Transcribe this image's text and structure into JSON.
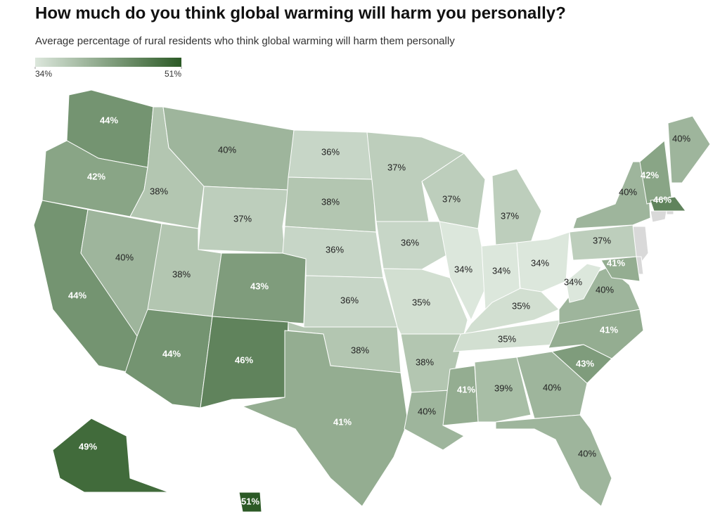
{
  "chart_data": {
    "type": "choropleth",
    "title": "How much do you think global warming will harm you personally?",
    "subtitle": "Average percentage of rural residents who think global warming will harm them personally",
    "colors": [
      "#dce7dc",
      "#2c5a26"
    ],
    "legend_ticks": [
      {
        "value": 34,
        "label": "34%"
      },
      {
        "value": 51,
        "label": "51%"
      }
    ],
    "values": [
      44,
      42,
      44,
      40,
      38,
      40,
      37,
      38,
      43,
      44,
      46,
      36,
      38,
      36,
      36,
      38,
      41,
      37,
      36,
      35,
      38,
      40,
      37,
      34,
      41,
      37,
      34,
      34,
      35,
      35,
      39,
      40,
      40,
      43,
      41,
      40,
      34,
      37,
      40,
      42,
      40,
      46,
      41,
      49,
      51
    ],
    "value_labels": [
      "44%",
      "42%",
      "44%",
      "40%",
      "38%",
      "40%",
      "37%",
      "38%",
      "43%",
      "44%",
      "46%",
      "36%",
      "38%",
      "36%",
      "36%",
      "38%",
      "41%",
      "37%",
      "36%",
      "35%",
      "38%",
      "40%",
      "37%",
      "34%",
      "41%",
      "37%",
      "34%",
      "34%",
      "35%",
      "35%",
      "39%",
      "40%",
      "40%",
      "43%",
      "41%",
      "40%",
      "34%",
      "37%",
      "40%",
      "42%",
      "40%",
      "46%",
      "41%",
      "49%",
      "51%"
    ]
  }
}
